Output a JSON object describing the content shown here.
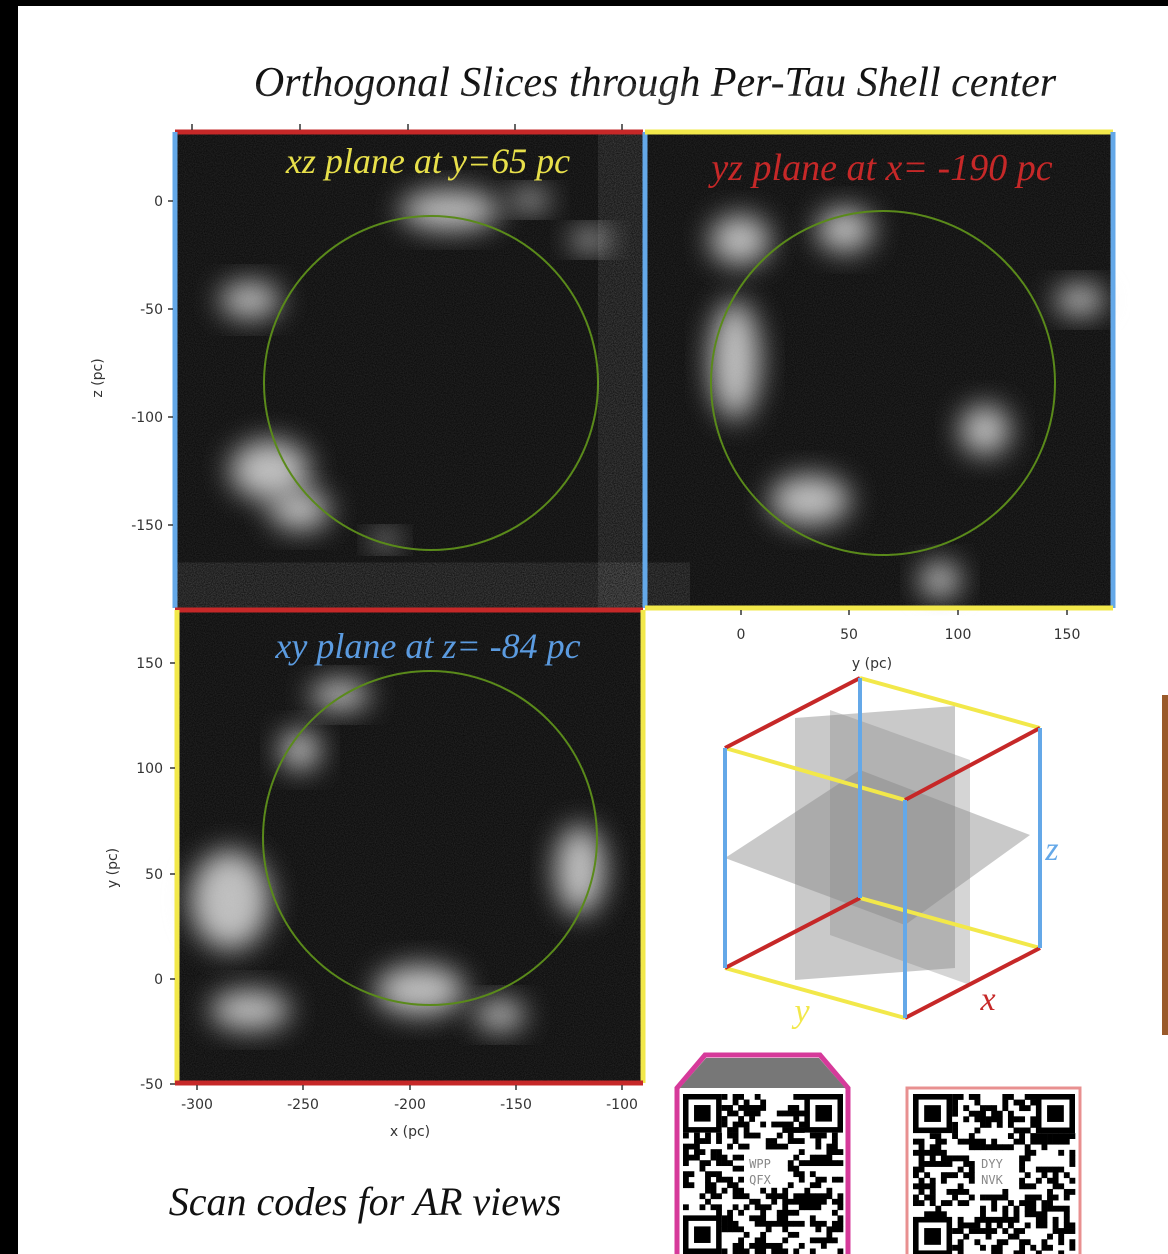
{
  "title": "Orthogonal Slices through Per-Tau Shell center",
  "panels": [
    {
      "label": "xz plane at y=65 pc",
      "y_axis_label": "z (pc)",
      "y_ticks": [
        "0",
        "-50",
        "-100",
        "-150"
      ]
    },
    {
      "label": "yz plane at x= -190 pc",
      "x_axis_label": "y (pc)",
      "x_ticks": [
        "0",
        "50",
        "100",
        "150"
      ]
    },
    {
      "label": "xy plane at z= -84 pc",
      "y_axis_label": "y (pc)",
      "y_ticks": [
        "150",
        "100",
        "50",
        "0",
        "-50"
      ],
      "x_axis_label": "x (pc)",
      "x_ticks": [
        "-300",
        "-250",
        "-200",
        "-150",
        "-100"
      ]
    }
  ],
  "cube_labels": {
    "x": "x",
    "y": "y",
    "z": "z"
  },
  "qr_codes": [
    {
      "code": [
        "WPP",
        "QFX"
      ]
    },
    {
      "code": [
        "DYY",
        "NVK"
      ]
    }
  ],
  "caption": "Scan codes for AR views"
}
